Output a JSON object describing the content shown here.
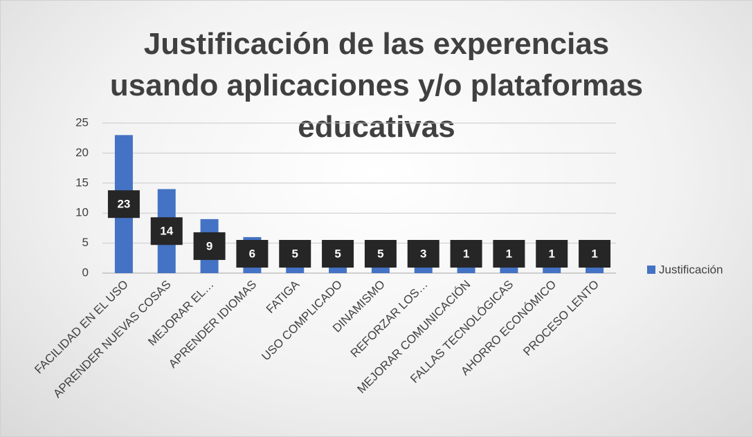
{
  "chart_data": {
    "type": "bar",
    "title": "Justificación de las experencias usando aplicaciones y/o plataformas educativas",
    "categories": [
      "FACILIDAD EN EL USO",
      "APRENDER NUEVAS COSAS",
      "MEJORAR EL…",
      "APRENDER IDIOMAS",
      "FATIGA",
      "USO COMPLICADO",
      "DINAMISMO",
      "REFORZAR LOS…",
      "MEJORAR COMUNICACIÓN",
      "FALLAS TECNOLÓGICAS",
      "AHORRO ECONÓMICO",
      "PROCESO LENTO"
    ],
    "series": [
      {
        "name": "Justificación",
        "color": "#4472c4",
        "values": [
          23,
          14,
          9,
          6,
          5,
          5,
          5,
          3,
          1,
          1,
          1,
          1
        ]
      }
    ],
    "ylim": [
      0,
      25
    ],
    "yticks": [
      0,
      5,
      10,
      15,
      20,
      25
    ],
    "grid": true,
    "legend": "right"
  }
}
